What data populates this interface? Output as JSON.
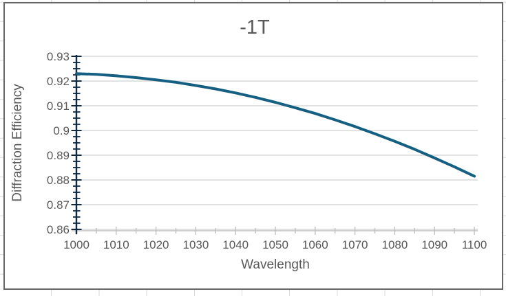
{
  "chart": {
    "title": "-1T",
    "x_axis_title": "Wavelength",
    "y_axis_title": "Diffraction Efficiency"
  },
  "chart_data": {
    "type": "line",
    "title": "-1T",
    "xlabel": "Wavelength",
    "ylabel": "Diffraction Efficiency",
    "xlim": [
      1000,
      1100
    ],
    "ylim": [
      0.86,
      0.93
    ],
    "x_major_tick": 10,
    "x_minor_tick": 5,
    "y_major_tick": 0.01,
    "y_minor_tick": 0.0025,
    "grid": "horizontal-major",
    "legend": "none",
    "x_tick_labels": [
      "1000",
      "1010",
      "1020",
      "1030",
      "1040",
      "1050",
      "1060",
      "1070",
      "1080",
      "1090",
      "1100"
    ],
    "y_tick_labels": [
      "0.93",
      "0.92",
      "0.91",
      "0.9",
      "0.89",
      "0.88",
      "0.87",
      "0.86"
    ],
    "series": [
      {
        "name": "-1T",
        "color": "#156082",
        "x": [
          1000,
          1005,
          1010,
          1015,
          1020,
          1025,
          1030,
          1035,
          1040,
          1045,
          1050,
          1055,
          1060,
          1065,
          1070,
          1075,
          1080,
          1085,
          1090,
          1095,
          1100
        ],
        "y": [
          0.923,
          0.9227,
          0.9221,
          0.9214,
          0.9205,
          0.9195,
          0.9182,
          0.9168,
          0.9152,
          0.9134,
          0.9114,
          0.9092,
          0.9069,
          0.9043,
          0.9016,
          0.8987,
          0.8956,
          0.8924,
          0.8889,
          0.8853,
          0.8815
        ]
      }
    ]
  },
  "colors": {
    "series_line": "#156082",
    "y_axis_line": "#0E2841",
    "x_axis_line": "#BFBFBF",
    "gridline": "#D9D9D9",
    "label_text": "#595959",
    "chart_border": "#666666",
    "worksheet_gridline": "#DADADA"
  }
}
